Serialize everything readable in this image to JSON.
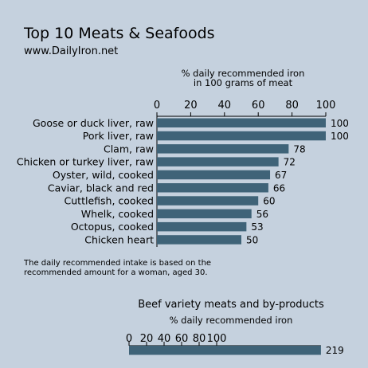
{
  "title": "Top 10 Meats & Seafoods",
  "source": "www.DailyIron.net",
  "colors": {
    "background": "#c5d1de",
    "bar": "#3f6378"
  },
  "chart_data": [
    {
      "type": "bar",
      "orientation": "horizontal",
      "axis_title_line1": "% daily recommended iron",
      "axis_title_line2": "in 100 grams of meat",
      "xticks": [
        0,
        20,
        40,
        60,
        80,
        100
      ],
      "xlim": [
        0,
        100
      ],
      "axis_position": "top",
      "categories": [
        "Goose or duck liver, raw",
        "Pork liver, raw",
        "Clam, raw",
        "Chicken or turkey liver, raw",
        "Oyster, wild, cooked",
        "Caviar, black and red",
        "Cuttlefish, cooked",
        "Whelk, cooked",
        "Octopus, cooked",
        "Chicken heart"
      ],
      "values": [
        100,
        100,
        78,
        72,
        67,
        66,
        60,
        56,
        53,
        50
      ],
      "data_labels": [
        "100",
        "100",
        "78",
        "72",
        "67",
        "66",
        "60",
        "56",
        "53",
        "50"
      ],
      "footnote_line1": "The daily recommended intake is based on the",
      "footnote_line2": "recommended amount for a woman, aged 30."
    },
    {
      "type": "bar",
      "orientation": "horizontal",
      "subtitle": "Beef variety meats and by-products",
      "axis_title": "% daily recommended iron",
      "xticks": [
        0,
        20,
        40,
        60,
        80,
        100
      ],
      "axis_position": "top",
      "values": [
        219
      ],
      "data_labels": [
        "219"
      ]
    }
  ]
}
